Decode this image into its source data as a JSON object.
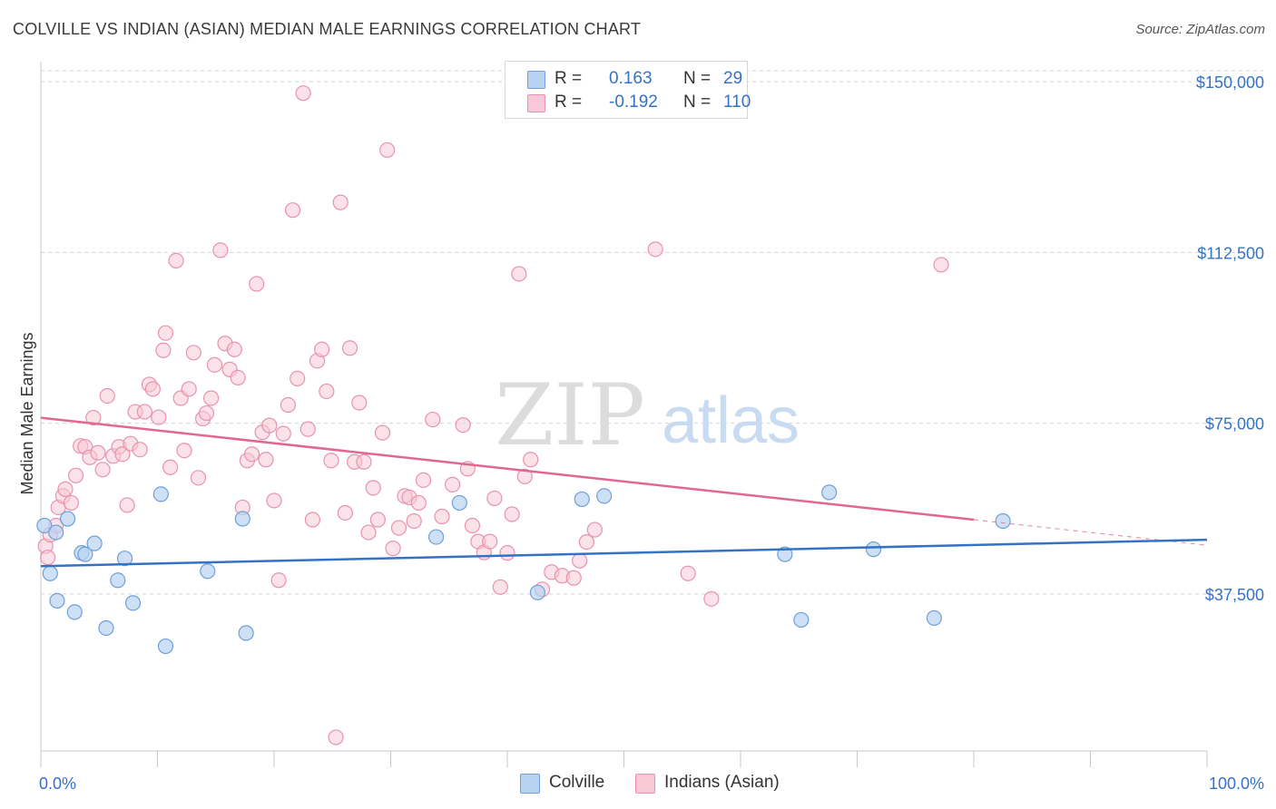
{
  "title": "COLVILLE VS INDIAN (ASIAN) MEDIAN MALE EARNINGS CORRELATION CHART",
  "source": "Source: ZipAtlas.com",
  "watermark": {
    "zip": "ZIP",
    "atlas": "atlas"
  },
  "legend_top": [
    {
      "r_label": "R =",
      "r_value": "0.163",
      "n_label": "N =",
      "n_value": "29"
    },
    {
      "r_label": "R =",
      "r_value": "-0.192",
      "n_label": "N =",
      "n_value": "110"
    }
  ],
  "legend_bottom": [
    {
      "label": "Colville"
    },
    {
      "label": "Indians (Asian)"
    }
  ],
  "colors": {
    "colville_fill": "#b8d3f2",
    "colville_stroke": "#6e9fd8",
    "colville_line": "#3472c4",
    "indian_fill": "#f8c8d6",
    "indian_stroke": "#e892ae",
    "indian_line": "#e0688f",
    "grid": "#d4d4d4",
    "axis_text": "#3472c4"
  },
  "chart_data": {
    "type": "scatter",
    "title": "COLVILLE VS INDIAN (ASIAN) MEDIAN MALE EARNINGS CORRELATION CHART",
    "xlabel": "",
    "ylabel": "Median Male Earnings",
    "xlim": [
      0,
      100
    ],
    "ylim": [
      3000,
      157000
    ],
    "x_tick_labels": [
      "0.0%",
      "100.0%"
    ],
    "y_ticks": [
      {
        "value": 37500,
        "label": "$37,500"
      },
      {
        "value": 75000,
        "label": "$75,000"
      },
      {
        "value": 112500,
        "label": "$112,500"
      },
      {
        "value": 150000,
        "label": "$150,000"
      }
    ],
    "series": [
      {
        "name": "Colville",
        "r": 0.163,
        "n": 29,
        "trend": {
          "x0": 0,
          "y0": 43600,
          "x1": 100,
          "y1": 49400
        },
        "points": [
          [
            0.3,
            52500
          ],
          [
            1.3,
            51000
          ],
          [
            0.8,
            42000
          ],
          [
            2.3,
            54000
          ],
          [
            1.4,
            36000
          ],
          [
            2.9,
            33500
          ],
          [
            3.5,
            46500
          ],
          [
            3.8,
            46200
          ],
          [
            4.6,
            48600
          ],
          [
            5.6,
            30000
          ],
          [
            6.6,
            40500
          ],
          [
            7.2,
            45300
          ],
          [
            7.9,
            35500
          ],
          [
            10.3,
            59400
          ],
          [
            10.7,
            26000
          ],
          [
            14.3,
            42500
          ],
          [
            17.3,
            54000
          ],
          [
            17.6,
            28900
          ],
          [
            33.9,
            50000
          ],
          [
            35.9,
            57500
          ],
          [
            42.6,
            37800
          ],
          [
            46.4,
            58300
          ],
          [
            48.3,
            59000
          ],
          [
            63.8,
            46200
          ],
          [
            65.2,
            31800
          ],
          [
            67.6,
            59800
          ],
          [
            71.4,
            47300
          ],
          [
            76.6,
            32200
          ],
          [
            82.5,
            53500
          ]
        ]
      },
      {
        "name": "Indians (Asian)",
        "r": -0.192,
        "n": 110,
        "trend": {
          "x0": 0,
          "y0": 76200,
          "x1": 80,
          "y1": 53800,
          "dash_to_x": 100,
          "dash_to_y": 48200
        },
        "points": [
          [
            0.4,
            48000
          ],
          [
            0.6,
            45500
          ],
          [
            0.8,
            50500
          ],
          [
            1.3,
            52500
          ],
          [
            1.5,
            56500
          ],
          [
            1.9,
            59000
          ],
          [
            2.1,
            60500
          ],
          [
            2.6,
            57500
          ],
          [
            3.0,
            63500
          ],
          [
            3.4,
            70000
          ],
          [
            3.8,
            69800
          ],
          [
            4.2,
            67500
          ],
          [
            4.5,
            76200
          ],
          [
            4.9,
            68500
          ],
          [
            5.3,
            64800
          ],
          [
            5.7,
            81000
          ],
          [
            6.2,
            67800
          ],
          [
            6.7,
            69800
          ],
          [
            7.0,
            68200
          ],
          [
            7.4,
            57000
          ],
          [
            7.7,
            70500
          ],
          [
            8.1,
            77500
          ],
          [
            8.5,
            69200
          ],
          [
            8.9,
            77500
          ],
          [
            9.3,
            83500
          ],
          [
            9.6,
            82500
          ],
          [
            10.1,
            76300
          ],
          [
            10.5,
            91000
          ],
          [
            10.7,
            94800
          ],
          [
            11.1,
            65300
          ],
          [
            11.6,
            110700
          ],
          [
            12.0,
            80500
          ],
          [
            12.3,
            69000
          ],
          [
            12.7,
            82500
          ],
          [
            13.1,
            90500
          ],
          [
            13.5,
            63000
          ],
          [
            13.9,
            76000
          ],
          [
            14.2,
            77200
          ],
          [
            14.6,
            80500
          ],
          [
            14.9,
            87800
          ],
          [
            15.4,
            113000
          ],
          [
            15.8,
            92500
          ],
          [
            16.2,
            86800
          ],
          [
            16.6,
            91200
          ],
          [
            16.9,
            85000
          ],
          [
            17.3,
            56500
          ],
          [
            17.7,
            66800
          ],
          [
            18.1,
            68200
          ],
          [
            18.5,
            105600
          ],
          [
            19.0,
            73000
          ],
          [
            19.3,
            67000
          ],
          [
            19.6,
            74500
          ],
          [
            20.0,
            58000
          ],
          [
            20.4,
            40500
          ],
          [
            20.8,
            72700
          ],
          [
            21.2,
            79000
          ],
          [
            21.6,
            121800
          ],
          [
            22.0,
            84800
          ],
          [
            22.5,
            147500
          ],
          [
            22.9,
            73700
          ],
          [
            23.3,
            53800
          ],
          [
            23.7,
            88700
          ],
          [
            24.1,
            91200
          ],
          [
            24.5,
            82000
          ],
          [
            24.9,
            66800
          ],
          [
            25.3,
            6000
          ],
          [
            25.7,
            123500
          ],
          [
            26.1,
            55300
          ],
          [
            26.5,
            91500
          ],
          [
            26.9,
            66500
          ],
          [
            27.3,
            79500
          ],
          [
            27.7,
            66500
          ],
          [
            28.1,
            51000
          ],
          [
            28.5,
            60800
          ],
          [
            28.9,
            53800
          ],
          [
            29.3,
            72900
          ],
          [
            29.7,
            135000
          ],
          [
            30.2,
            47500
          ],
          [
            30.7,
            52000
          ],
          [
            31.2,
            59000
          ],
          [
            31.6,
            58700
          ],
          [
            32.0,
            53500
          ],
          [
            32.4,
            57500
          ],
          [
            32.8,
            62500
          ],
          [
            33.6,
            75800
          ],
          [
            34.4,
            54500
          ],
          [
            35.3,
            61500
          ],
          [
            36.2,
            74600
          ],
          [
            36.6,
            65000
          ],
          [
            37.0,
            52500
          ],
          [
            37.5,
            49000
          ],
          [
            38.0,
            46600
          ],
          [
            38.5,
            49000
          ],
          [
            38.9,
            58500
          ],
          [
            39.4,
            39000
          ],
          [
            40.0,
            46500
          ],
          [
            40.4,
            55000
          ],
          [
            41.0,
            107800
          ],
          [
            41.5,
            63300
          ],
          [
            42.0,
            67000
          ],
          [
            43.0,
            38500
          ],
          [
            43.8,
            42300
          ],
          [
            44.7,
            41500
          ],
          [
            45.7,
            41000
          ],
          [
            46.2,
            44800
          ],
          [
            46.8,
            48900
          ],
          [
            47.5,
            51600
          ],
          [
            52.7,
            113200
          ],
          [
            55.5,
            42000
          ],
          [
            57.5,
            36400
          ],
          [
            77.2,
            109800
          ]
        ]
      }
    ]
  }
}
